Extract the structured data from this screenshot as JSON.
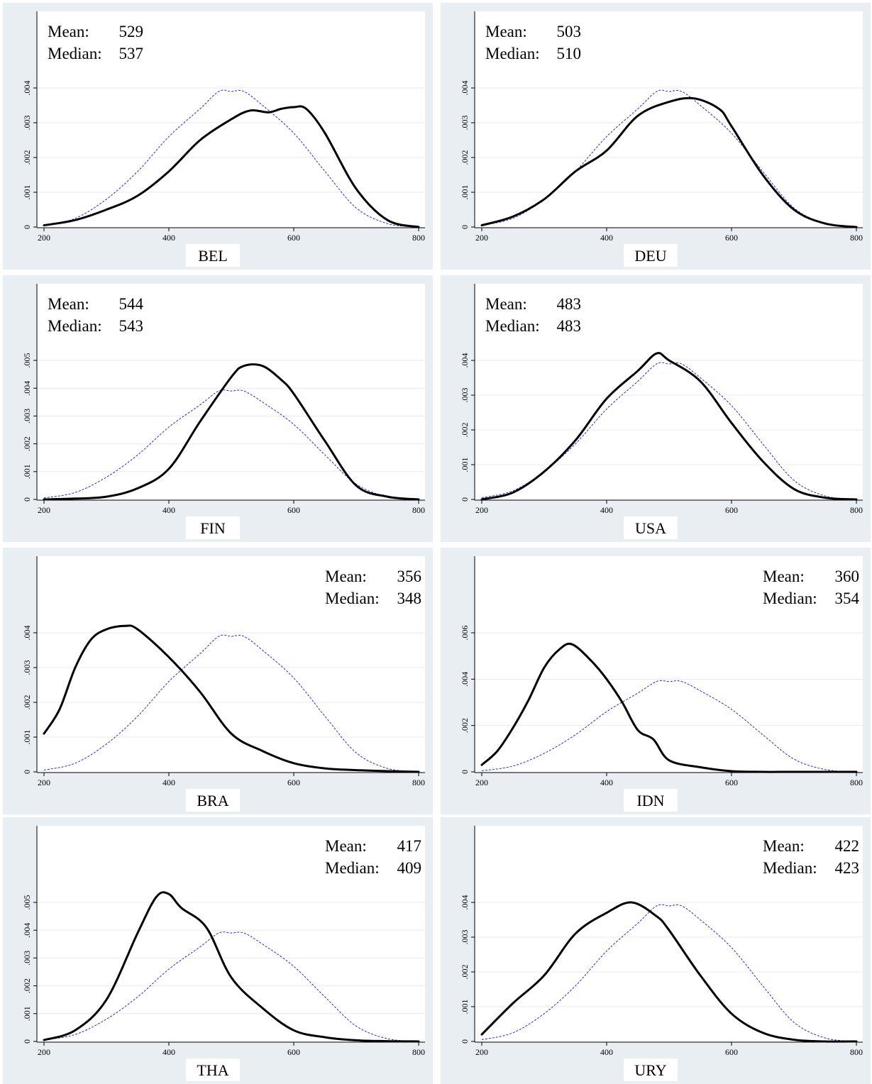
{
  "reference_curve": {
    "x": [
      200,
      250,
      300,
      350,
      400,
      450,
      480,
      500,
      520,
      550,
      600,
      650,
      700,
      750,
      800
    ],
    "y": [
      5e-05,
      0.00025,
      0.0008,
      0.0016,
      0.0026,
      0.0034,
      0.0039,
      0.0039,
      0.0039,
      0.0035,
      0.0027,
      0.0016,
      0.00055,
      0.0001,
      0.0
    ]
  },
  "chart_data": [
    {
      "type": "line",
      "title": "BEL",
      "stats": {
        "mean_label": "Mean:",
        "mean": "529",
        "median_label": "Median:",
        "median": "537"
      },
      "stats_pos": "left",
      "xlim": [
        200,
        800
      ],
      "xticks": [
        "200",
        "400",
        "600",
        "800"
      ],
      "ylim": [
        0,
        0.004
      ],
      "yticks": [
        "0",
        ".001",
        ".002",
        ".003",
        ".004"
      ],
      "series": [
        {
          "x": [
            200,
            250,
            300,
            350,
            400,
            450,
            500,
            530,
            560,
            580,
            600,
            620,
            650,
            700,
            750,
            800
          ],
          "y": [
            5e-05,
            0.0002,
            0.0005,
            0.0009,
            0.0016,
            0.0025,
            0.0031,
            0.00335,
            0.0033,
            0.0034,
            0.00345,
            0.0034,
            0.0027,
            0.0011,
            0.0002,
            0.0
          ]
        }
      ]
    },
    {
      "type": "line",
      "title": "DEU",
      "stats": {
        "mean_label": "Mean:",
        "mean": "503",
        "median_label": "Median:",
        "median": "510"
      },
      "stats_pos": "left",
      "xlim": [
        200,
        800
      ],
      "xticks": [
        "200",
        "400",
        "600",
        "800"
      ],
      "ylim": [
        0,
        0.004
      ],
      "yticks": [
        "0",
        ".001",
        ".002",
        ".003",
        ".004"
      ],
      "series": [
        {
          "x": [
            200,
            250,
            300,
            350,
            400,
            450,
            500,
            540,
            580,
            600,
            650,
            700,
            750,
            800
          ],
          "y": [
            5e-05,
            0.0003,
            0.0008,
            0.0016,
            0.0022,
            0.0032,
            0.0036,
            0.0037,
            0.0034,
            0.0029,
            0.0015,
            0.0005,
            0.0001,
            0.0
          ]
        }
      ]
    },
    {
      "type": "line",
      "title": "FIN",
      "stats": {
        "mean_label": "Mean:",
        "mean": "544",
        "median_label": "Median:",
        "median": "543"
      },
      "stats_pos": "left",
      "xlim": [
        200,
        800
      ],
      "xticks": [
        "200",
        "400",
        "600",
        "800"
      ],
      "ylim": [
        0,
        0.005
      ],
      "yticks": [
        "0",
        ".001",
        ".002",
        ".003",
        ".004",
        ".005"
      ],
      "series": [
        {
          "x": [
            200,
            250,
            300,
            350,
            400,
            450,
            500,
            520,
            550,
            580,
            600,
            650,
            700,
            750,
            800
          ],
          "y": [
            0.0,
            3e-05,
            0.0001,
            0.0004,
            0.0011,
            0.0028,
            0.0044,
            0.0048,
            0.0048,
            0.0043,
            0.0038,
            0.0021,
            0.0005,
            0.0001,
            0.0
          ]
        }
      ]
    },
    {
      "type": "line",
      "title": "USA",
      "stats": {
        "mean_label": "Mean:",
        "mean": "483",
        "median_label": "Median:",
        "median": "483"
      },
      "stats_pos": "left",
      "xlim": [
        200,
        800
      ],
      "xticks": [
        "200",
        "400",
        "600",
        "800"
      ],
      "ylim": [
        0,
        0.004
      ],
      "yticks": [
        "0",
        ".001",
        ".002",
        ".003",
        ".004"
      ],
      "series": [
        {
          "x": [
            200,
            250,
            300,
            350,
            400,
            450,
            480,
            500,
            550,
            600,
            650,
            700,
            750,
            800
          ],
          "y": [
            0.0,
            0.0002,
            0.0008,
            0.0017,
            0.0029,
            0.0037,
            0.0042,
            0.004,
            0.0034,
            0.0022,
            0.0011,
            0.0003,
            5e-05,
            0.0
          ]
        }
      ]
    },
    {
      "type": "line",
      "title": "BRA",
      "stats": {
        "mean_label": "Mean:",
        "mean": "356",
        "median_label": "Median:",
        "median": "348"
      },
      "stats_pos": "right",
      "xlim": [
        200,
        800
      ],
      "xticks": [
        "200",
        "400",
        "600",
        "800"
      ],
      "ylim": [
        0,
        0.004
      ],
      "yticks": [
        "0",
        ".001",
        ".002",
        ".003",
        ".004"
      ],
      "series": [
        {
          "x": [
            200,
            225,
            250,
            275,
            300,
            330,
            350,
            400,
            450,
            500,
            550,
            600,
            650,
            700,
            750,
            800
          ],
          "y": [
            0.0011,
            0.0018,
            0.003,
            0.0038,
            0.0041,
            0.0042,
            0.0041,
            0.0033,
            0.0023,
            0.0011,
            0.0006,
            0.00025,
            0.0001,
            5e-05,
            2e-05,
            0.0
          ]
        }
      ]
    },
    {
      "type": "line",
      "title": "IDN",
      "stats": {
        "mean_label": "Mean:",
        "mean": "360",
        "median_label": "Median:",
        "median": "354"
      },
      "stats_pos": "right",
      "xlim": [
        200,
        800
      ],
      "xticks": [
        "200",
        "400",
        "600",
        "800"
      ],
      "ylim": [
        0,
        0.006
      ],
      "yticks": [
        "0",
        ".002",
        ".004",
        ".006"
      ],
      "series": [
        {
          "x": [
            200,
            225,
            250,
            275,
            300,
            325,
            345,
            375,
            400,
            425,
            450,
            475,
            500,
            550,
            600,
            650,
            700,
            800
          ],
          "y": [
            0.0003,
            0.0009,
            0.0019,
            0.0031,
            0.0045,
            0.0053,
            0.0055,
            0.0048,
            0.004,
            0.003,
            0.0018,
            0.0014,
            0.0005,
            0.0002,
            3e-05,
            0.0,
            0.0,
            0.0
          ]
        }
      ]
    },
    {
      "type": "line",
      "title": "THA",
      "stats": {
        "mean_label": "Mean:",
        "mean": "417",
        "median_label": "Median:",
        "median": "409"
      },
      "stats_pos": "right",
      "xlim": [
        200,
        800
      ],
      "xticks": [
        "200",
        "400",
        "600",
        "800"
      ],
      "ylim": [
        0,
        0.005
      ],
      "yticks": [
        "0",
        ".001",
        ".002",
        ".003",
        ".004",
        ".005"
      ],
      "series": [
        {
          "x": [
            200,
            250,
            300,
            350,
            380,
            400,
            420,
            460,
            500,
            550,
            600,
            650,
            700,
            750,
            800
          ],
          "y": [
            5e-05,
            0.0004,
            0.0015,
            0.0039,
            0.0052,
            0.0053,
            0.0048,
            0.0041,
            0.0023,
            0.0012,
            0.0004,
            0.00015,
            4e-05,
            1e-05,
            0.0
          ]
        }
      ]
    },
    {
      "type": "line",
      "title": "URY",
      "stats": {
        "mean_label": "Mean:",
        "mean": "422",
        "median_label": "Median:",
        "median": "423"
      },
      "stats_pos": "right",
      "xlim": [
        200,
        800
      ],
      "xticks": [
        "200",
        "400",
        "600",
        "800"
      ],
      "ylim": [
        0,
        0.004
      ],
      "yticks": [
        "0",
        ".001",
        ".002",
        ".003",
        ".004"
      ],
      "series": [
        {
          "x": [
            200,
            250,
            300,
            350,
            400,
            440,
            480,
            500,
            550,
            600,
            650,
            700,
            750,
            800
          ],
          "y": [
            0.0002,
            0.0011,
            0.0019,
            0.0031,
            0.0037,
            0.004,
            0.0036,
            0.0032,
            0.0019,
            0.0008,
            0.00025,
            5e-05,
            0.0,
            0.0
          ]
        }
      ]
    }
  ]
}
